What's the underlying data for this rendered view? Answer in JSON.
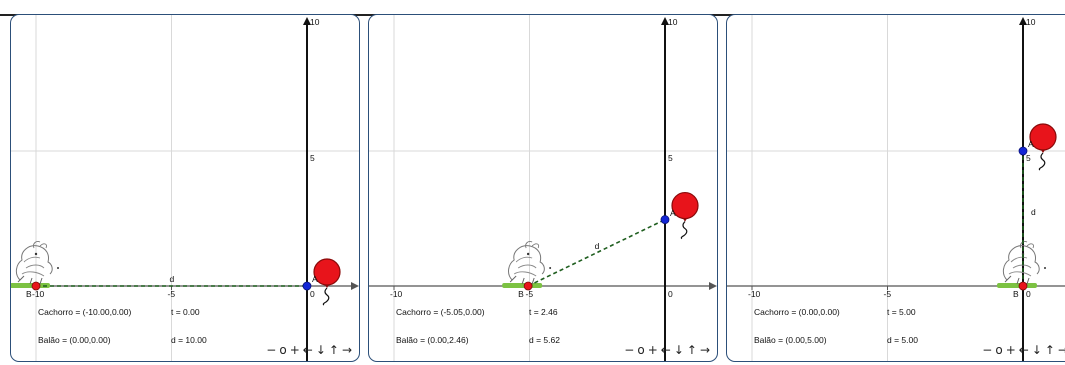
{
  "panels": [
    {
      "dog": "(-10.00,0.00)",
      "balloon": "(0.00,0.00)",
      "t": "0.00",
      "d": "10.00",
      "dog_x": -10,
      "balloon_y": 0,
      "cachorro_text": "Cachorro = (-10.00,0.00)",
      "balao_text": "Balão = (0.00,0.00)",
      "t_text": "t = 0.00",
      "d_text": "d = 10.00"
    },
    {
      "dog": "(-5.05,0.00)",
      "balloon": "(0.00,2.46)",
      "t": "2.46",
      "d": "5.62",
      "dog_x": -5.05,
      "balloon_y": 2.46,
      "cachorro_text": "Cachorro = (-5.05,0.00)",
      "balao_text": "Balão = (0.00,2.46)",
      "t_text": "t = 2.46",
      "d_text": "d = 5.62"
    },
    {
      "dog": "(0.00,0.00)",
      "balloon": "(0.00,5.00)",
      "t": "5.00",
      "d": "5.00",
      "dog_x": 0,
      "balloon_y": 5,
      "cachorro_text": "Cachorro = (0.00,0.00)",
      "balao_text": "Balão = (0.00,5.00)",
      "t_text": "t = 5.00",
      "d_text": "d = 5.00"
    }
  ],
  "axis": {
    "x_ticks": [
      "-10",
      "-5",
      "0"
    ],
    "y_ticks": [
      "5",
      "10"
    ],
    "point_A": "A",
    "point_B": "B",
    "segment_label": "d"
  },
  "navbar": {
    "minus": "−",
    "circle": "o",
    "plus": "+",
    "left": "←",
    "down": "↓",
    "up": "↑",
    "right": "→"
  },
  "colors": {
    "panel_border": "#2c4f79",
    "dog_point": "#e8141b",
    "balloon_point": "#1326d6",
    "segment": "#1f5e1f",
    "balloon": "#e8141b",
    "grid": "#d9d9d9",
    "ground": "#7cc242"
  }
}
